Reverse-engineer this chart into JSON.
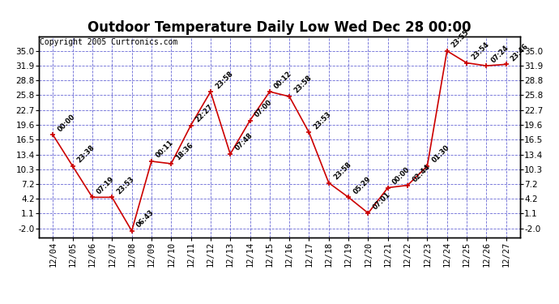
{
  "title": "Outdoor Temperature Daily Low Wed Dec 28 00:00",
  "copyright": "Copyright 2005 Curtronics.com",
  "x_labels": [
    "12/04",
    "12/05",
    "12/06",
    "12/07",
    "12/08",
    "12/09",
    "12/10",
    "12/11",
    "12/12",
    "12/13",
    "12/14",
    "12/15",
    "12/16",
    "12/17",
    "12/18",
    "12/19",
    "12/20",
    "12/21",
    "12/22",
    "12/23",
    "12/24",
    "12/25",
    "12/26",
    "12/27"
  ],
  "y_values": [
    17.5,
    11.0,
    4.5,
    4.5,
    -2.5,
    12.0,
    11.5,
    19.5,
    26.5,
    13.5,
    20.5,
    26.5,
    25.5,
    18.0,
    7.5,
    4.5,
    1.2,
    6.5,
    7.0,
    11.0,
    35.0,
    32.5,
    31.9,
    32.2
  ],
  "point_labels": [
    "00:00",
    "23:38",
    "07:19",
    "23:53",
    "06:43",
    "00:11",
    "18:36",
    "22:27",
    "23:58",
    "07:48",
    "07:00",
    "00:12",
    "23:58",
    "23:53",
    "23:58",
    "05:29",
    "07:01",
    "00:00",
    "02:44",
    "01:30",
    "23:55",
    "23:54",
    "07:24",
    "23:46"
  ],
  "y_ticks": [
    -2.0,
    1.1,
    4.2,
    7.2,
    10.3,
    13.4,
    16.5,
    19.6,
    22.7,
    25.8,
    28.8,
    31.9,
    35.0
  ],
  "ylim": [
    -3.8,
    38.0
  ],
  "line_color": "#cc0000",
  "marker_color": "#cc0000",
  "plot_bg_color": "#ffffff",
  "fig_bg_color": "#ffffff",
  "grid_color": "#4444cc",
  "border_color": "#000000",
  "title_fontsize": 12,
  "tick_fontsize": 7.5,
  "point_label_fontsize": 6,
  "copyright_fontsize": 7
}
